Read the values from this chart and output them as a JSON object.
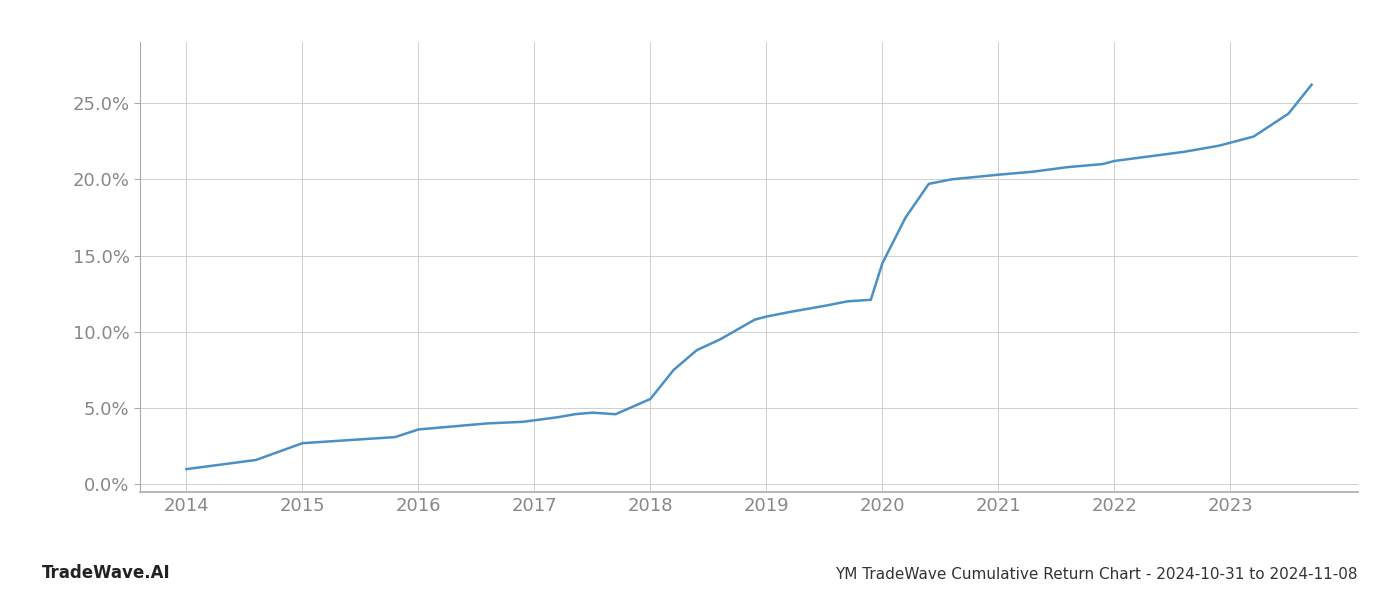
{
  "title": "YM TradeWave Cumulative Return Chart - 2024-10-31 to 2024-11-08",
  "watermark": "TradeWave.AI",
  "line_color": "#4a90c4",
  "background_color": "#ffffff",
  "grid_color": "#d0d0d0",
  "x_values": [
    2014.0,
    2014.3,
    2014.6,
    2015.0,
    2015.4,
    2015.8,
    2016.0,
    2016.3,
    2016.6,
    2016.9,
    2017.0,
    2017.2,
    2017.35,
    2017.5,
    2017.7,
    2018.0,
    2018.2,
    2018.4,
    2018.6,
    2018.9,
    2019.0,
    2019.2,
    2019.5,
    2019.7,
    2019.9,
    2020.0,
    2020.2,
    2020.4,
    2020.6,
    2021.0,
    2021.3,
    2021.6,
    2021.9,
    2022.0,
    2022.3,
    2022.6,
    2022.9,
    2023.0,
    2023.2,
    2023.5,
    2023.7
  ],
  "y_values": [
    0.01,
    0.013,
    0.016,
    0.027,
    0.029,
    0.031,
    0.036,
    0.038,
    0.04,
    0.041,
    0.042,
    0.044,
    0.046,
    0.047,
    0.046,
    0.056,
    0.075,
    0.088,
    0.095,
    0.108,
    0.11,
    0.113,
    0.117,
    0.12,
    0.121,
    0.145,
    0.175,
    0.197,
    0.2,
    0.203,
    0.205,
    0.208,
    0.21,
    0.212,
    0.215,
    0.218,
    0.222,
    0.224,
    0.228,
    0.243,
    0.262
  ],
  "xlim": [
    2013.6,
    2024.1
  ],
  "ylim": [
    -0.005,
    0.29
  ],
  "yticks": [
    0.0,
    0.05,
    0.1,
    0.15,
    0.2,
    0.25
  ],
  "ytick_labels": [
    "0.0%",
    "5.0%",
    "10.0%",
    "15.0%",
    "20.0%",
    "25.0%"
  ],
  "xticks": [
    2014,
    2015,
    2016,
    2017,
    2018,
    2019,
    2020,
    2021,
    2022,
    2023
  ],
  "line_width": 1.8,
  "title_fontsize": 11,
  "tick_fontsize": 13,
  "watermark_fontsize": 12,
  "tick_color": "#888888",
  "spine_color": "#aaaaaa",
  "title_color": "#333333",
  "watermark_color": "#222222"
}
